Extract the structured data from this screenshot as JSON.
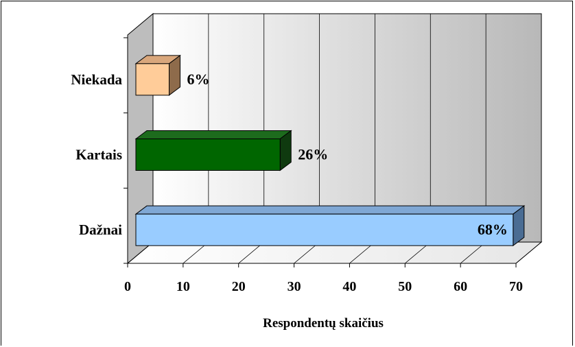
{
  "chart_data": {
    "type": "bar",
    "orientation": "horizontal",
    "three_d": true,
    "categories": [
      "Dažnai",
      "Kartais",
      "Niekada"
    ],
    "values": [
      68,
      26,
      6
    ],
    "data_labels": [
      "68%",
      "26%",
      "6%"
    ],
    "colors": [
      "#99CCFF",
      "#006600",
      "#FFCC99"
    ],
    "side_colors": [
      "#4A6C93",
      "#0F3A0F",
      "#8E6B4B"
    ],
    "top_colors": [
      "#7FA7D4",
      "#1D6B1D",
      "#D9A77C"
    ],
    "xlabel": "Respondentų skaičius",
    "xlim": [
      0,
      70
    ],
    "ticks": [
      "0",
      "10",
      "20",
      "30",
      "40",
      "50",
      "60",
      "70"
    ],
    "grid": true,
    "legend": "none"
  }
}
